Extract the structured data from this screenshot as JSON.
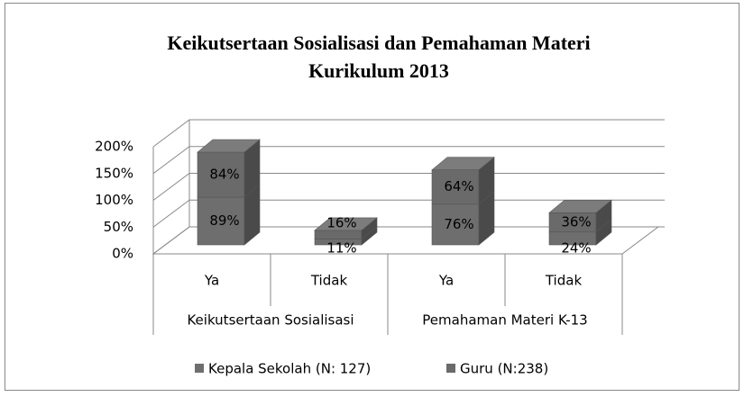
{
  "chart_data": {
    "type": "bar3d_stacked",
    "title": [
      "Keikutsertaan Sosialisasi dan Pemahaman Materi",
      "Kurikulum 2013"
    ],
    "categories": [
      "Ya",
      "Tidak",
      "Ya",
      "Tidak"
    ],
    "groups": [
      "Keikutsertaan Sosialisasi",
      "Pemahaman Materi K-13"
    ],
    "series": [
      {
        "name": "Kepala Sekolah (N: 127)",
        "color": "#6e6e6e",
        "values": [
          89,
          11,
          76,
          24
        ],
        "value_labels": [
          "89%",
          "11%",
          "76%",
          "24%"
        ]
      },
      {
        "name": "Guru (N:238)",
        "color": "#6a6a6a",
        "values": [
          84,
          16,
          64,
          36
        ],
        "value_labels": [
          "84%",
          "16%",
          "64%",
          "36%"
        ]
      }
    ],
    "ylim": [
      0,
      200
    ],
    "yticks": [
      {
        "value": 0,
        "label": "0%"
      },
      {
        "value": 50,
        "label": "50%"
      },
      {
        "value": 100,
        "label": "100%"
      },
      {
        "value": 150,
        "label": "150%"
      },
      {
        "value": 200,
        "label": "200%"
      }
    ],
    "grid": true,
    "legend": "bottom"
  }
}
